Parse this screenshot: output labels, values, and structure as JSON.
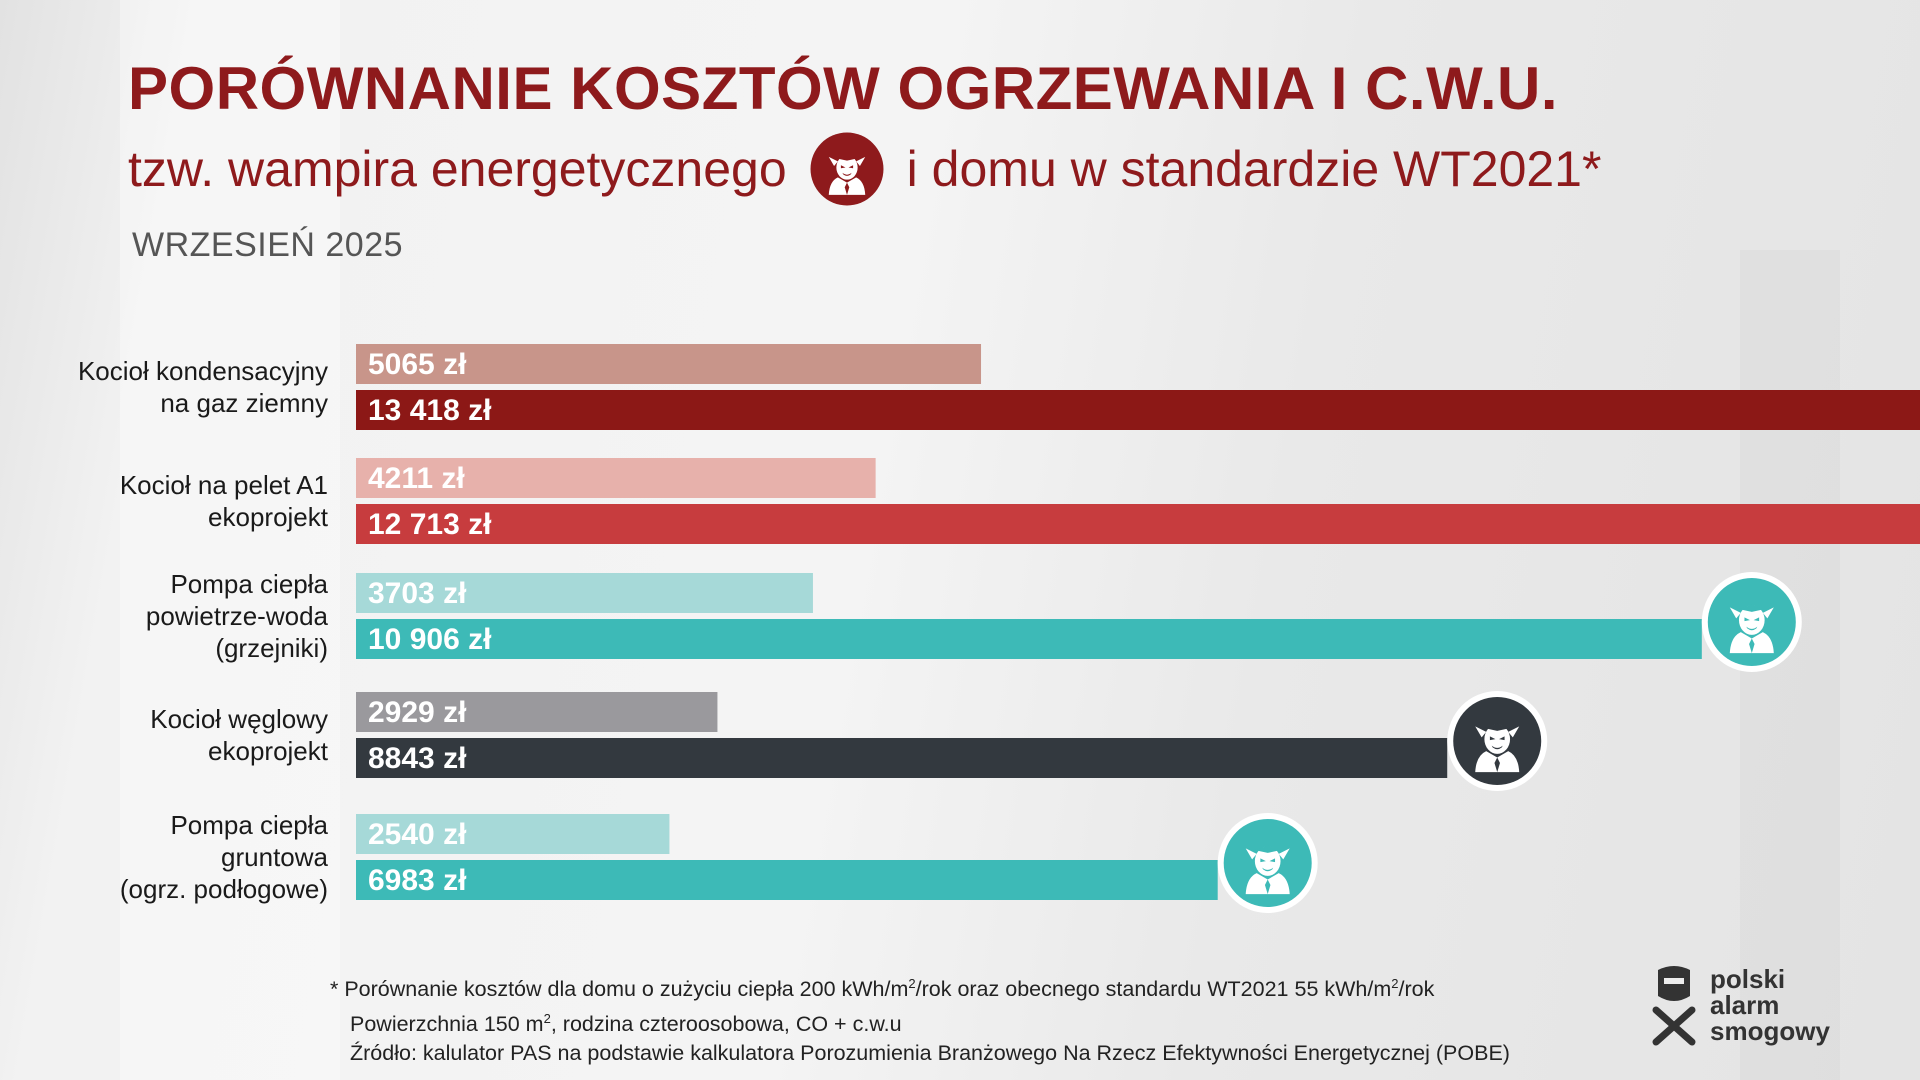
{
  "title": "PORÓWNANIE KOSZTÓW OGRZEWANIA I C.W.U.",
  "subtitle_part1": "tzw. wampira energetycznego",
  "subtitle_part2": "i domu w standardzie WT2021*",
  "date": "WRZESIEŃ 2025",
  "chart_data": {
    "type": "bar",
    "orientation": "horizontal",
    "categories": [
      [
        "Kocioł kondensacyjny",
        "na gaz ziemny"
      ],
      [
        "Kocioł na pelet A1",
        "ekoprojekt"
      ],
      [
        "Pompa ciepła",
        "powietrze-woda",
        "(grzejniki)"
      ],
      [
        "Kocioł węglowy",
        "ekoprojekt"
      ],
      [
        "Pompa ciepła",
        "gruntowa",
        "(ogrz. podłogowe)"
      ]
    ],
    "series": [
      {
        "values": [
          5065,
          4211,
          3703,
          2929,
          2540
        ],
        "labels": [
          "5065 zł",
          "4211  zł",
          "3703 zł",
          "2929 zł",
          "2540 zł"
        ]
      },
      {
        "values": [
          13418,
          12713,
          10906,
          8843,
          6983
        ],
        "labels": [
          "13 418 zł",
          "12 713 zł",
          "10 906 zł",
          "8843 zł",
          "6983 zł"
        ]
      }
    ],
    "colors": {
      "light": [
        "#c8958a",
        "#e7b1ab",
        "#a6d9d8",
        "#9a999d",
        "#a6d9d8"
      ],
      "dark": [
        "#8c1816",
        "#c73c3e",
        "#3dbab7",
        "#33393f",
        "#3dbab7"
      ]
    },
    "marker_icon": "vampire-icon"
  },
  "footnote": {
    "line1_a": "* Porównanie kosztów dla domu o zużyciu ciepła 200 kWh/m",
    "line1_sup1": "2",
    "line1_b": "/rok oraz obecnego standardu WT2021 55 kWh/m",
    "line1_sup2": "2",
    "line1_c": "/rok",
    "line2_a": "Powierzchnia 150 m",
    "line2_sup": "2",
    "line2_b": ", rodzina czteroosobowa, CO + c.w.u",
    "line3": "Źródło: kalulator PAS na podstawie kalkulatora Porozumienia Branżowego Na Rzecz Efektywności Energetycznej (POBE)"
  },
  "logo": {
    "line1": "polski",
    "line2": "alarm",
    "line3": "smogowy"
  }
}
